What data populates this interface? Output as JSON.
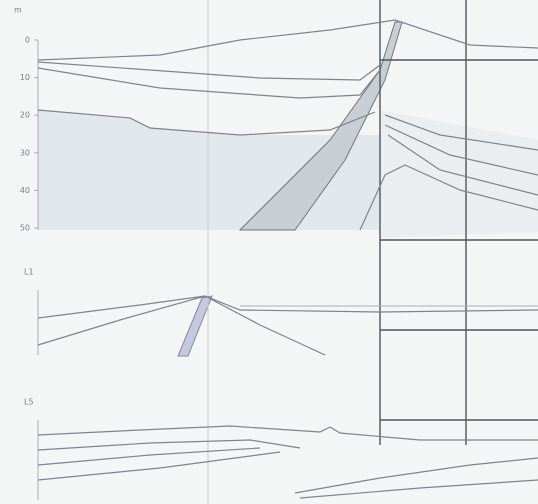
{
  "axis": {
    "unit": "m",
    "ticks": [
      "0",
      "10",
      "20",
      "30",
      "40",
      "50"
    ]
  },
  "panels": [
    {
      "label": "L1"
    },
    {
      "label": "L5"
    }
  ]
}
